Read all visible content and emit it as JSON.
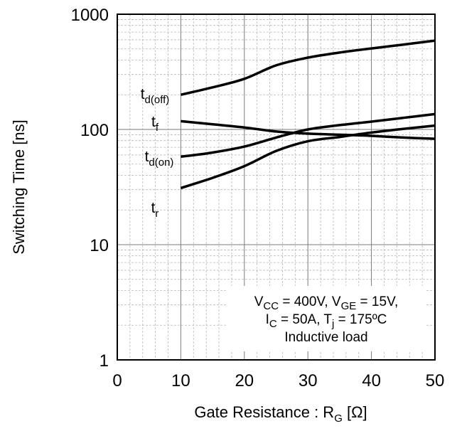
{
  "chart_data": {
    "type": "line",
    "x_label": {
      "main": "Gate Resistance : R",
      "sub": "G",
      "unit": " [Ω]"
    },
    "y_label": "Switching Time [ns]",
    "x_range": [
      0,
      50
    ],
    "y_range": [
      1,
      1000
    ],
    "y_scale": "log",
    "x_ticks": [
      "0",
      "10",
      "20",
      "30",
      "40",
      "50"
    ],
    "y_ticks": [
      "1",
      "10",
      "100",
      "1000"
    ],
    "grid": true,
    "series": [
      {
        "name": "td(off)",
        "label": {
          "main": "t",
          "sub": "d(off)"
        },
        "x": [
          10,
          15,
          20,
          25,
          30,
          35,
          40,
          45,
          50
        ],
        "y": [
          200,
          232,
          275,
          360,
          420,
          465,
          505,
          545,
          590
        ]
      },
      {
        "name": "tf",
        "label": {
          "main": "t",
          "sub": "f"
        },
        "x": [
          10,
          15,
          20,
          25,
          30,
          35,
          40,
          45,
          50
        ],
        "y": [
          118,
          111,
          104,
          96,
          92,
          90,
          88,
          85,
          83
        ]
      },
      {
        "name": "td(on)",
        "label": {
          "main": "t",
          "sub": "d(on)"
        },
        "x": [
          10,
          15,
          20,
          25,
          30,
          35,
          40,
          45,
          50
        ],
        "y": [
          58,
          63,
          71,
          85,
          100,
          109,
          117,
          126,
          136
        ]
      },
      {
        "name": "tr",
        "label": {
          "main": "t",
          "sub": "r"
        },
        "x": [
          10,
          15,
          20,
          25,
          30,
          35,
          40,
          45,
          50
        ],
        "y": [
          31,
          38,
          48,
          65,
          79,
          86,
          94,
          101,
          108
        ]
      }
    ],
    "annotation": {
      "line1": [
        {
          "t": "V"
        },
        {
          "t": "CC",
          "sub": true
        },
        {
          "t": " = 400V, V"
        },
        {
          "t": "GE",
          "sub": true
        },
        {
          "t": " = 15V,"
        }
      ],
      "line2": [
        {
          "t": "I"
        },
        {
          "t": "C",
          "sub": true
        },
        {
          "t": " = 50A, T"
        },
        {
          "t": "j",
          "sub": true
        },
        {
          "t": " = 175ºC"
        }
      ],
      "line3": [
        {
          "t": "Inductive load"
        }
      ]
    }
  }
}
